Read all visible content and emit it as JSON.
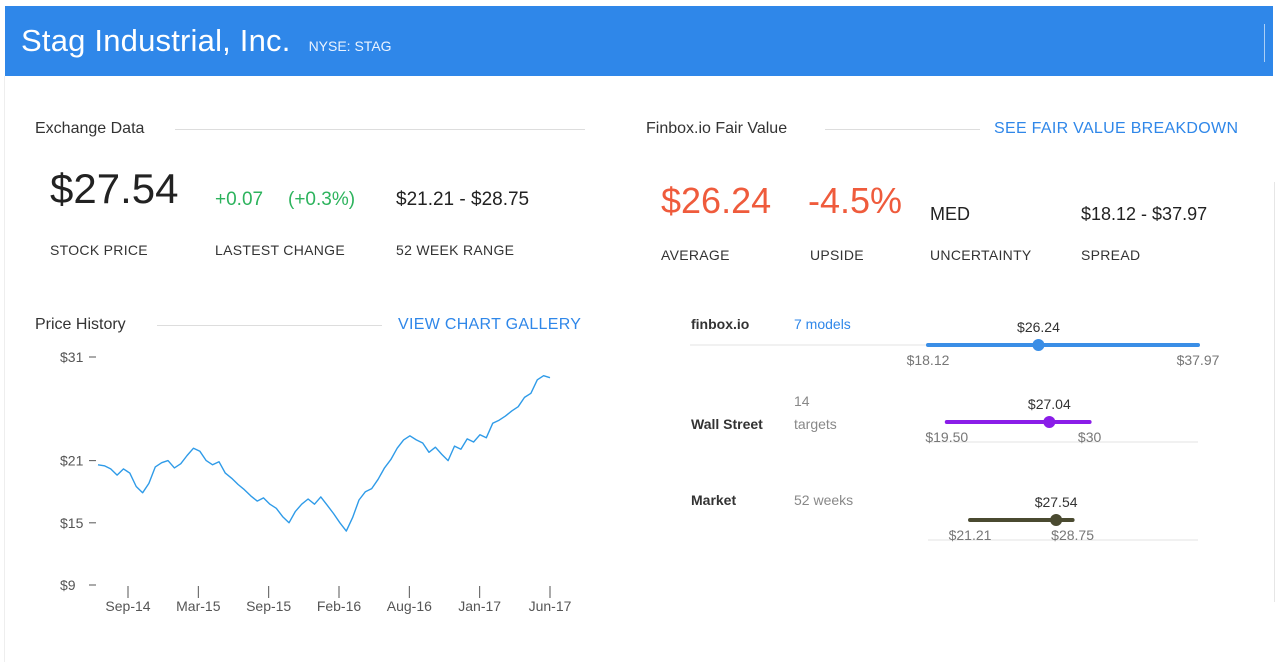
{
  "header": {
    "company": "Stag Industrial, Inc.",
    "ticker": "NYSE: STAG",
    "bg_color": "#2f87e9"
  },
  "exchange": {
    "title": "Exchange Data",
    "price": "$27.54",
    "price_label": "STOCK PRICE",
    "change": "+0.07",
    "change_pct": "(+0.3%)",
    "change_label": "LASTEST CHANGE",
    "range": "$21.21 - $28.75",
    "range_label": "52 WEEK RANGE"
  },
  "fair_value": {
    "title": "Finbox.io Fair Value",
    "link": "SEE FAIR VALUE BREAKDOWN",
    "average": "$26.24",
    "average_label": "AVERAGE",
    "upside": "-4.5%",
    "upside_label": "UPSIDE",
    "uncertainty": "MED",
    "uncertainty_label": "UNCERTAINTY",
    "spread": "$18.12 - $37.97",
    "spread_label": "SPREAD",
    "accent_color": "#ef5b3c"
  },
  "price_history": {
    "title": "Price History",
    "link": "VIEW CHART GALLERY"
  },
  "models": [
    {
      "name": "finbox.io",
      "sub_top": "",
      "sub": "7 models",
      "sub_is_link": true,
      "low": 18.12,
      "high": 37.97,
      "value": 26.24,
      "low_label": "$18.12",
      "high_label": "$37.97",
      "value_label": "$26.24",
      "color": "#3a8ee6"
    },
    {
      "name": "Wall Street",
      "sub_top": "14",
      "sub": "targets",
      "sub_is_link": false,
      "low": 19.5,
      "high": 30,
      "value": 27.04,
      "low_label": "$19.50",
      "high_label": "$30",
      "value_label": "$27.04",
      "color": "#8a1de8"
    },
    {
      "name": "Market",
      "sub_top": "",
      "sub": "52 weeks",
      "sub_is_link": false,
      "low": 21.21,
      "high": 28.75,
      "value": 27.54,
      "low_label": "$21.21",
      "high_label": "$28.75",
      "value_label": "$27.54",
      "color": "#4a4a30"
    }
  ],
  "chart_data": {
    "type": "line",
    "title": "",
    "xlabel": "",
    "ylabel": "",
    "y_ticks": [
      31,
      21,
      15,
      9
    ],
    "y_tick_labels": [
      "$31",
      "$21",
      "$15",
      "$9"
    ],
    "ylim": [
      9,
      31
    ],
    "x_ticks": [
      "Sep-14",
      "Mar-15",
      "Sep-15",
      "Feb-16",
      "Aug-16",
      "Jan-17",
      "Jun-17"
    ],
    "grid": false,
    "color": "#2f9be8",
    "series": [
      {
        "values": [
          20.6,
          20.5,
          20.2,
          19.6,
          20.2,
          19.8,
          18.5,
          17.9,
          18.8,
          20.4,
          20.8,
          21.0,
          20.3,
          20.7,
          21.5,
          22.2,
          21.9,
          21.0,
          20.6,
          20.9,
          19.8,
          19.3,
          18.7,
          18.2,
          17.6,
          17.1,
          17.4,
          16.8,
          16.4,
          15.6,
          15.0,
          16.1,
          16.8,
          17.3,
          16.8,
          17.5,
          16.7,
          15.9,
          15.0,
          14.2,
          15.5,
          17.2,
          18.0,
          18.3,
          19.2,
          20.3,
          21.1,
          22.2,
          23.0,
          23.4,
          23.0,
          22.7,
          21.8,
          22.3,
          21.6,
          21.0,
          22.4,
          22.1,
          23.1,
          22.8,
          23.5,
          23.2,
          24.6,
          24.9,
          25.3,
          25.8,
          26.2,
          27.1,
          27.5,
          28.8,
          29.2,
          29.0
        ]
      }
    ]
  }
}
